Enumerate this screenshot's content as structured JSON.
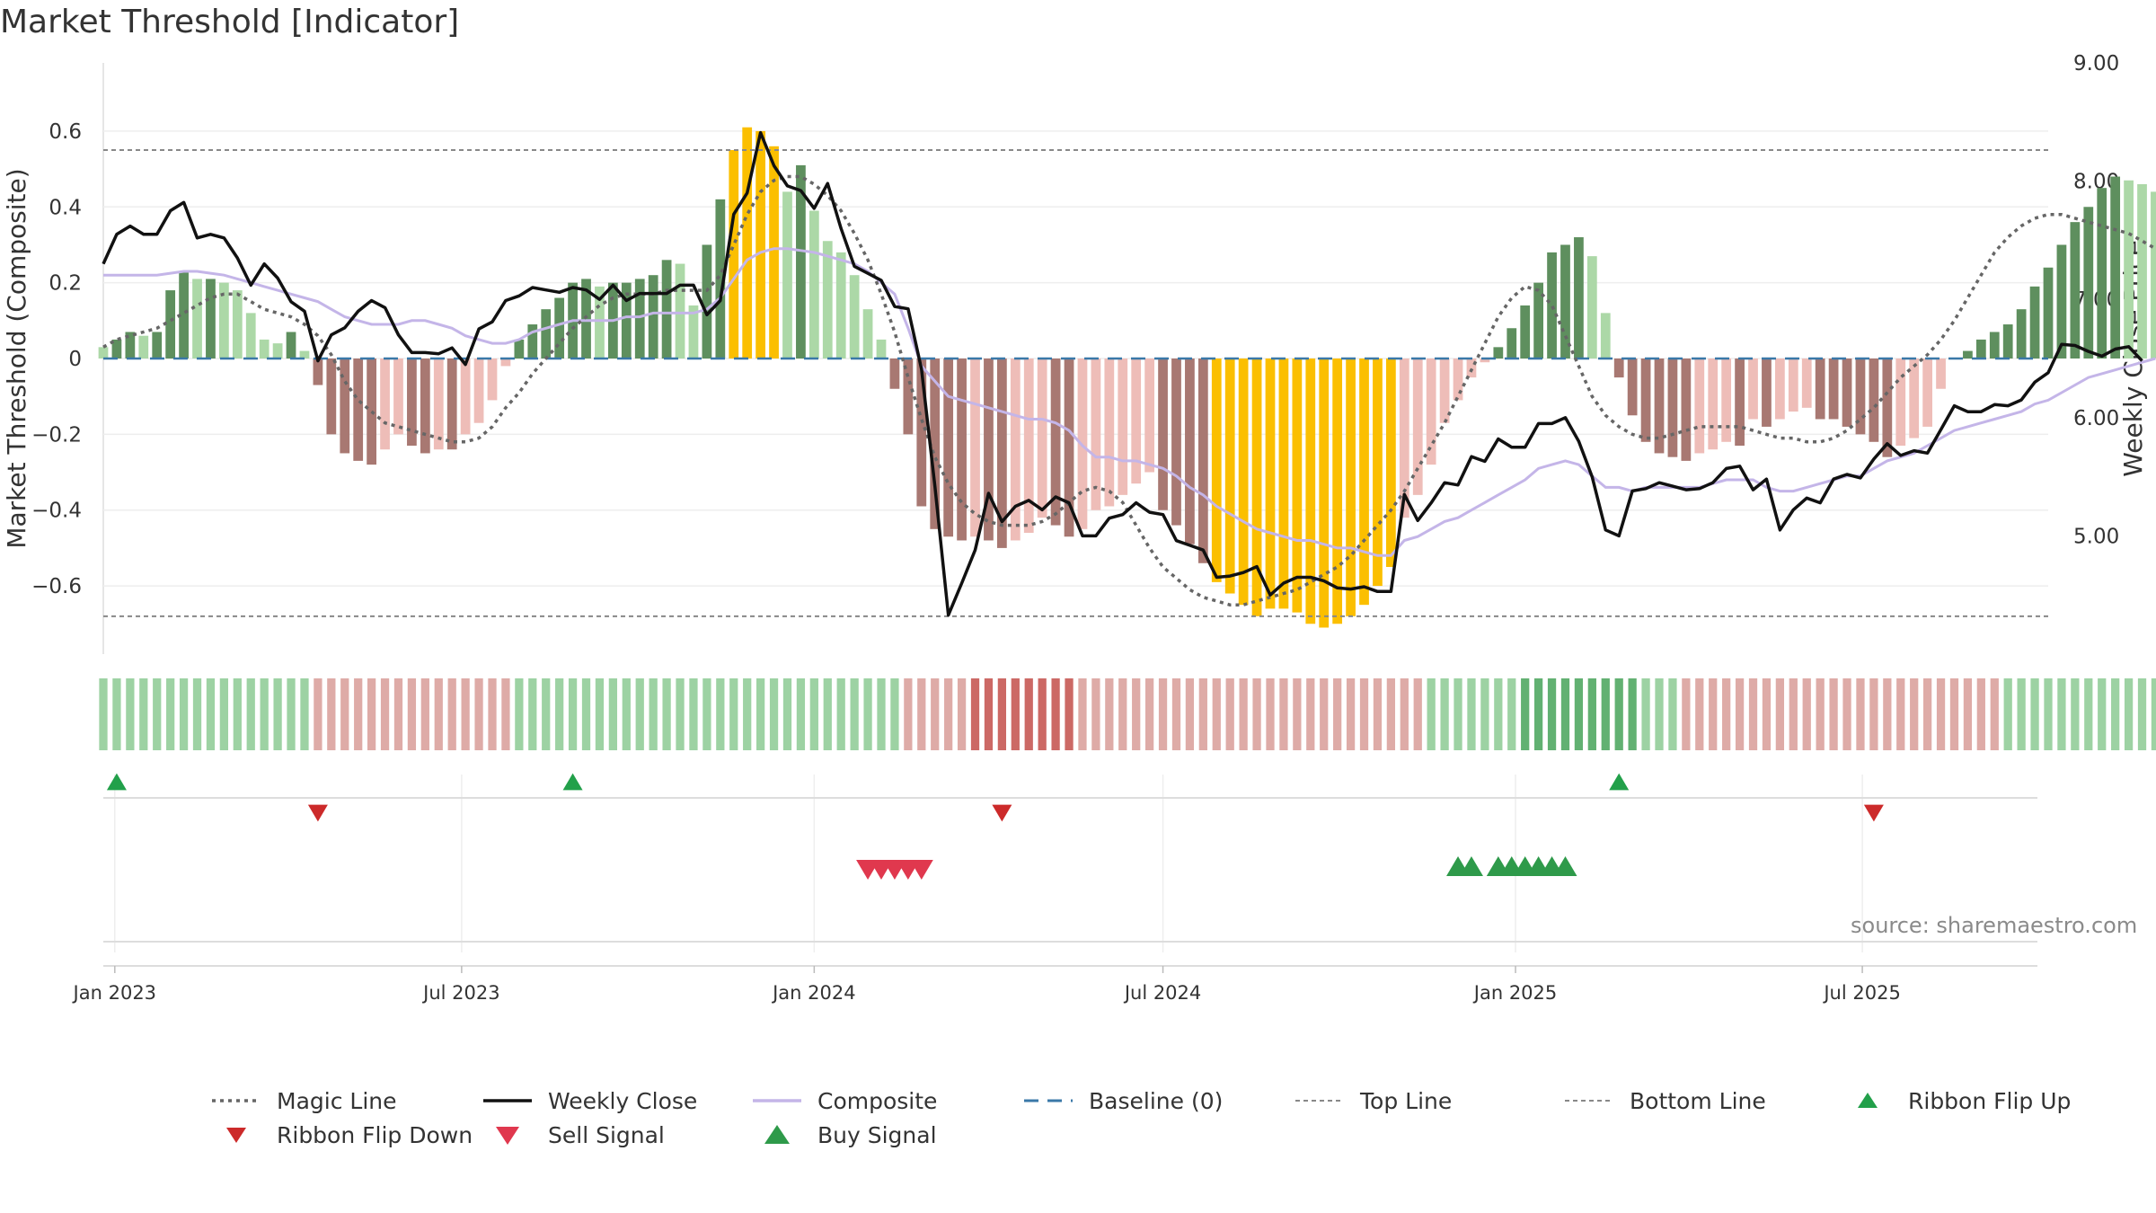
{
  "title": "Market Threshold [Indicator]",
  "source": "source: sharemaestro.com",
  "chart_data": {
    "type": "bar",
    "title": "Market Threshold [Indicator]",
    "ylabel_left": "Market Threshold (Composite)",
    "ylabel_right": "Weekly Close Price",
    "ylim_left": [
      -0.78,
      0.78
    ],
    "ylim_right": [
      4.0,
      9.0
    ],
    "yticks_left": [
      {
        "value": 0.6,
        "label": "0.6"
      },
      {
        "value": 0.4,
        "label": "0.4"
      },
      {
        "value": 0.2,
        "label": "0.2"
      },
      {
        "value": 0,
        "label": "0"
      },
      {
        "value": -0.2,
        "label": "−0.2"
      },
      {
        "value": -0.4,
        "label": "−0.4"
      },
      {
        "value": -0.6,
        "label": "−0.6"
      }
    ],
    "yticks_right": [
      {
        "value": 9.0,
        "label": "9.00"
      },
      {
        "value": 8.0,
        "label": "8.00"
      },
      {
        "value": 7.0,
        "label": "7.00"
      },
      {
        "value": 6.0,
        "label": "6.00"
      },
      {
        "value": 5.0,
        "label": "5.00"
      }
    ],
    "xlim": [
      "2022-12-26",
      "2025-10-06"
    ],
    "xticks": [
      {
        "date": "2023-01-01",
        "label": "Jan 2023"
      },
      {
        "date": "2023-07-01",
        "label": "Jul 2023"
      },
      {
        "date": "2024-01-01",
        "label": "Jan 2024"
      },
      {
        "date": "2024-07-01",
        "label": "Jul 2024"
      },
      {
        "date": "2025-01-01",
        "label": "Jan 2025"
      },
      {
        "date": "2025-07-01",
        "label": "Jul 2025"
      }
    ],
    "start_date": "2022-12-26",
    "top_line": 0.55,
    "bottom_line": -0.68,
    "baseline": 0,
    "colors": {
      "pos_strong": "#5e8f5e",
      "pos_weak": "#acd8a7",
      "neg_strong": "#a87872",
      "neg_weak": "#eebdb8",
      "extreme": "#fbbf00",
      "magic": "#666666",
      "close": "#111111",
      "composite": "#c4b5e8",
      "baseline": "#3a78a8",
      "threshold": "#888888",
      "flip_up": "#22a04a",
      "flip_down": "#cc2a2a",
      "sell": "#e0384e",
      "buy": "#2e9a4a"
    },
    "bars": [
      0.03,
      0.05,
      0.07,
      0.06,
      0.07,
      0.18,
      0.23,
      0.21,
      0.21,
      0.2,
      0.18,
      0.12,
      0.05,
      0.04,
      0.07,
      0.02,
      -0.07,
      -0.2,
      -0.25,
      -0.27,
      -0.28,
      -0.24,
      -0.2,
      -0.23,
      -0.25,
      -0.24,
      -0.24,
      -0.2,
      -0.17,
      -0.11,
      -0.02,
      0.05,
      0.09,
      0.13,
      0.16,
      0.2,
      0.21,
      0.19,
      0.2,
      0.2,
      0.21,
      0.22,
      0.26,
      0.25,
      0.14,
      0.3,
      0.42,
      0.55,
      0.61,
      0.6,
      0.56,
      0.44,
      0.51,
      0.39,
      0.31,
      0.28,
      0.22,
      0.13,
      0.05,
      -0.08,
      -0.2,
      -0.39,
      -0.45,
      -0.47,
      -0.48,
      -0.47,
      -0.48,
      -0.5,
      -0.48,
      -0.46,
      -0.42,
      -0.44,
      -0.47,
      -0.45,
      -0.4,
      -0.39,
      -0.36,
      -0.33,
      -0.3,
      -0.4,
      -0.44,
      -0.49,
      -0.54,
      -0.59,
      -0.62,
      -0.65,
      -0.68,
      -0.66,
      -0.66,
      -0.67,
      -0.7,
      -0.71,
      -0.7,
      -0.68,
      -0.65,
      -0.6,
      -0.55,
      -0.42,
      -0.36,
      -0.28,
      -0.17,
      -0.11,
      -0.05,
      -0.01,
      0.03,
      0.08,
      0.14,
      0.2,
      0.28,
      0.3,
      0.32,
      0.27,
      0.12,
      -0.05,
      -0.15,
      -0.22,
      -0.25,
      -0.26,
      -0.27,
      -0.25,
      -0.24,
      -0.22,
      -0.23,
      -0.16,
      -0.18,
      -0.16,
      -0.14,
      -0.13,
      -0.16,
      -0.16,
      -0.18,
      -0.2,
      -0.22,
      -0.26,
      -0.23,
      -0.21,
      -0.18,
      -0.08,
      0.0,
      0.02,
      0.05,
      0.07,
      0.09,
      0.13,
      0.19,
      0.24,
      0.3,
      0.36,
      0.4,
      0.45,
      0.48,
      0.47,
      0.46,
      0.44,
      0.4,
      0.36,
      0.25
    ],
    "close": [
      7.3,
      7.55,
      7.62,
      7.55,
      7.55,
      7.75,
      7.82,
      7.52,
      7.55,
      7.52,
      7.35,
      7.12,
      7.3,
      7.18,
      6.98,
      6.9,
      6.48,
      6.7,
      6.76,
      6.9,
      6.99,
      6.93,
      6.7,
      6.55,
      6.55,
      6.54,
      6.59,
      6.45,
      6.75,
      6.81,
      6.99,
      7.03,
      7.1,
      7.08,
      7.06,
      7.1,
      7.08,
      7.0,
      7.12,
      6.99,
      7.05,
      7.05,
      7.05,
      7.12,
      7.12,
      6.87,
      6.99,
      7.72,
      7.9,
      8.41,
      8.13,
      7.96,
      7.92,
      7.77,
      7.98,
      7.6,
      7.28,
      7.22,
      7.16,
      6.94,
      6.92,
      6.41,
      5.42,
      4.33,
      4.6,
      4.88,
      5.36,
      5.12,
      5.25,
      5.3,
      5.22,
      5.33,
      5.28,
      5.0,
      5.0,
      5.15,
      5.18,
      5.28,
      5.2,
      5.18,
      4.96,
      4.92,
      4.88,
      4.65,
      4.66,
      4.69,
      4.74,
      4.5,
      4.6,
      4.65,
      4.65,
      4.62,
      4.56,
      4.55,
      4.57,
      4.53,
      4.53,
      5.35,
      5.13,
      5.28,
      5.45,
      5.43,
      5.67,
      5.63,
      5.82,
      5.75,
      5.75,
      5.95,
      5.95,
      6.0,
      5.8,
      5.5,
      5.05,
      5.0,
      5.38,
      5.4,
      5.45,
      5.42,
      5.39,
      5.4,
      5.45,
      5.57,
      5.59,
      5.39,
      5.48,
      5.05,
      5.22,
      5.32,
      5.28,
      5.48,
      5.52,
      5.49,
      5.65,
      5.78,
      5.68,
      5.72,
      5.7,
      5.9,
      6.1,
      6.05,
      6.05,
      6.11,
      6.1,
      6.15,
      6.3,
      6.38,
      6.62,
      6.61,
      6.56,
      6.52,
      6.58,
      6.6,
      6.48
    ],
    "composite": [
      0.22,
      0.22,
      0.22,
      0.22,
      0.22,
      0.225,
      0.23,
      0.23,
      0.225,
      0.22,
      0.21,
      0.2,
      0.19,
      0.18,
      0.17,
      0.16,
      0.15,
      0.13,
      0.11,
      0.1,
      0.09,
      0.09,
      0.09,
      0.1,
      0.1,
      0.09,
      0.08,
      0.06,
      0.05,
      0.04,
      0.04,
      0.05,
      0.07,
      0.08,
      0.09,
      0.1,
      0.1,
      0.1,
      0.1,
      0.11,
      0.11,
      0.12,
      0.12,
      0.12,
      0.12,
      0.13,
      0.16,
      0.21,
      0.26,
      0.28,
      0.29,
      0.29,
      0.285,
      0.28,
      0.27,
      0.26,
      0.25,
      0.23,
      0.2,
      0.17,
      0.08,
      -0.02,
      -0.06,
      -0.1,
      -0.11,
      -0.12,
      -0.13,
      -0.14,
      -0.15,
      -0.16,
      -0.16,
      -0.17,
      -0.19,
      -0.23,
      -0.26,
      -0.26,
      -0.27,
      -0.27,
      -0.28,
      -0.29,
      -0.31,
      -0.34,
      -0.36,
      -0.39,
      -0.41,
      -0.43,
      -0.45,
      -0.46,
      -0.47,
      -0.48,
      -0.48,
      -0.49,
      -0.5,
      -0.5,
      -0.51,
      -0.52,
      -0.52,
      -0.48,
      -0.47,
      -0.45,
      -0.43,
      -0.42,
      -0.4,
      -0.38,
      -0.36,
      -0.34,
      -0.32,
      -0.29,
      -0.28,
      -0.27,
      -0.28,
      -0.31,
      -0.34,
      -0.34,
      -0.35,
      -0.34,
      -0.34,
      -0.34,
      -0.34,
      -0.34,
      -0.33,
      -0.32,
      -0.32,
      -0.32,
      -0.34,
      -0.35,
      -0.35,
      -0.34,
      -0.33,
      -0.32,
      -0.31,
      -0.31,
      -0.29,
      -0.27,
      -0.26,
      -0.25,
      -0.23,
      -0.21,
      -0.19,
      -0.18,
      -0.17,
      -0.16,
      -0.15,
      -0.14,
      -0.12,
      -0.11,
      -0.09,
      -0.07,
      -0.05,
      -0.04,
      -0.03,
      -0.02,
      -0.01,
      0.0
    ],
    "magic": [
      0.03,
      0.05,
      0.06,
      0.07,
      0.08,
      0.1,
      0.12,
      0.14,
      0.16,
      0.17,
      0.17,
      0.15,
      0.13,
      0.12,
      0.11,
      0.09,
      0.06,
      0.01,
      -0.06,
      -0.11,
      -0.14,
      -0.17,
      -0.18,
      -0.19,
      -0.2,
      -0.21,
      -0.22,
      -0.22,
      -0.21,
      -0.18,
      -0.13,
      -0.09,
      -0.04,
      0.0,
      0.04,
      0.08,
      0.11,
      0.14,
      0.16,
      0.17,
      0.17,
      0.17,
      0.18,
      0.18,
      0.18,
      0.18,
      0.22,
      0.3,
      0.38,
      0.44,
      0.47,
      0.48,
      0.48,
      0.46,
      0.43,
      0.39,
      0.33,
      0.26,
      0.17,
      0.07,
      -0.05,
      -0.16,
      -0.26,
      -0.33,
      -0.38,
      -0.41,
      -0.43,
      -0.44,
      -0.44,
      -0.44,
      -0.43,
      -0.41,
      -0.38,
      -0.35,
      -0.34,
      -0.35,
      -0.38,
      -0.44,
      -0.5,
      -0.55,
      -0.58,
      -0.61,
      -0.63,
      -0.64,
      -0.65,
      -0.65,
      -0.64,
      -0.63,
      -0.62,
      -0.61,
      -0.59,
      -0.57,
      -0.55,
      -0.52,
      -0.48,
      -0.44,
      -0.4,
      -0.35,
      -0.29,
      -0.23,
      -0.17,
      -0.1,
      -0.03,
      0.04,
      0.11,
      0.16,
      0.19,
      0.18,
      0.14,
      0.06,
      -0.02,
      -0.1,
      -0.15,
      -0.18,
      -0.2,
      -0.21,
      -0.21,
      -0.2,
      -0.19,
      -0.18,
      -0.18,
      -0.18,
      -0.18,
      -0.19,
      -0.2,
      -0.21,
      -0.21,
      -0.22,
      -0.22,
      -0.21,
      -0.19,
      -0.16,
      -0.13,
      -0.09,
      -0.05,
      -0.02,
      0.01,
      0.05,
      0.1,
      0.16,
      0.22,
      0.28,
      0.32,
      0.35,
      0.37,
      0.38,
      0.38,
      0.37,
      0.36,
      0.35,
      0.34,
      0.33,
      0.31,
      0.29,
      0.27,
      0.26,
      0.25
    ],
    "ribbon": [
      1,
      1,
      1,
      1,
      1,
      1,
      1,
      1,
      1,
      1,
      1,
      1,
      1,
      1,
      1,
      1,
      -1,
      -1,
      -1,
      -1,
      -1,
      -1,
      -1,
      -1,
      -1,
      -1,
      -1,
      -1,
      -1,
      -1,
      -1,
      1,
      1,
      1,
      1,
      1,
      1,
      1,
      1,
      1,
      1,
      1,
      1,
      1,
      1,
      1,
      1,
      1,
      1,
      1,
      1,
      1,
      1,
      1,
      1,
      1,
      1,
      1,
      1,
      1,
      -1,
      -1,
      -1,
      -1,
      -1,
      -2,
      -2,
      -2,
      -2,
      -2,
      -2,
      -2,
      -2,
      -1,
      -1,
      -1,
      -1,
      -1,
      -1,
      -1,
      -1,
      -1,
      -1,
      -1,
      -1,
      -1,
      -1,
      -1,
      -1,
      -1,
      -1,
      -1,
      -1,
      -1,
      -1,
      -1,
      -1,
      -1,
      -1,
      1,
      1,
      1,
      1,
      1,
      1,
      1,
      2,
      2,
      2,
      2,
      2,
      2,
      2,
      2,
      2,
      1,
      1,
      1,
      -1,
      -1,
      -1,
      -1,
      -1,
      -1,
      -1,
      -1,
      -1,
      -1,
      -1,
      -1,
      -1,
      -1,
      -1,
      -1,
      -1,
      -1,
      -1,
      -1,
      -1,
      -1,
      -1,
      -1,
      1,
      1,
      1,
      1,
      1,
      1,
      1,
      1,
      1,
      1,
      1,
      1,
      1,
      1,
      1,
      1,
      1,
      1,
      1,
      1,
      1
    ],
    "ribbon_flip_up_weeks": [
      1,
      35,
      113,
      158
    ],
    "ribbon_flip_down_weeks": [
      16,
      67,
      132
    ],
    "sell_signal_weeks": [
      57,
      58,
      59,
      60,
      61
    ],
    "buy_signal_weeks": [
      101,
      102,
      104,
      105,
      106,
      107,
      108,
      109
    ],
    "legend": [
      {
        "key": "magic",
        "label": "Magic Line",
        "style": "dotted-dark"
      },
      {
        "key": "close",
        "label": "Weekly Close",
        "style": "solid-black"
      },
      {
        "key": "composite",
        "label": "Composite",
        "style": "solid-lavender"
      },
      {
        "key": "baseline",
        "label": "Baseline (0)",
        "style": "dashed-blue"
      },
      {
        "key": "top",
        "label": "Top Line",
        "style": "dotted-gray"
      },
      {
        "key": "bottom",
        "label": "Bottom Line",
        "style": "dotted-gray"
      },
      {
        "key": "flip_up",
        "label": "Ribbon Flip Up",
        "style": "tri-up-green"
      },
      {
        "key": "flip_down",
        "label": "Ribbon Flip Down",
        "style": "tri-down-red"
      },
      {
        "key": "sell",
        "label": "Sell Signal",
        "style": "tri-down-pink"
      },
      {
        "key": "buy",
        "label": "Buy Signal",
        "style": "tri-up-green-lg"
      }
    ]
  }
}
